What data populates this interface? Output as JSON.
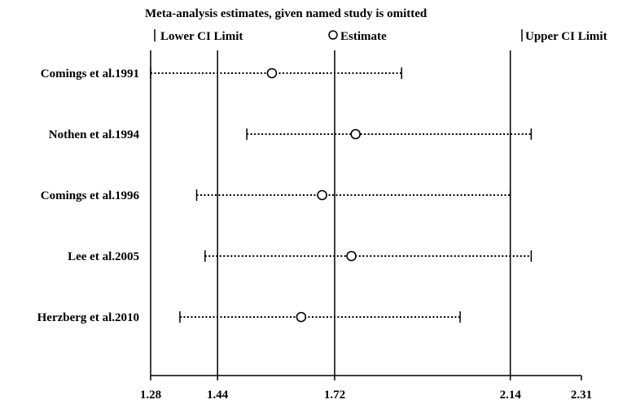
{
  "chart_data": {
    "type": "forest",
    "title": "Meta-analysis estimates, given named study is omitted",
    "legend": {
      "lower": "Lower CI Limit",
      "estimate": "Estimate",
      "upper": "Upper CI Limit"
    },
    "x_ticks": [
      1.28,
      1.44,
      1.72,
      2.14,
      2.31
    ],
    "x_tick_labels": [
      "1.28",
      "1.44",
      "1.72",
      "2.14",
      "2.31"
    ],
    "xlim": [
      1.28,
      2.31
    ],
    "reference_lines": [
      1.44,
      1.72,
      2.14
    ],
    "studies": [
      {
        "label": "Comings et al.1991",
        "lower": 1.28,
        "estimate": 1.57,
        "upper": 1.88
      },
      {
        "label": "Nothen et al.1994",
        "lower": 1.51,
        "estimate": 1.77,
        "upper": 2.19
      },
      {
        "label": "Comings et al.1996",
        "lower": 1.39,
        "estimate": 1.69,
        "upper": 2.14
      },
      {
        "label": "Lee et al.2005",
        "lower": 1.41,
        "estimate": 1.76,
        "upper": 2.19
      },
      {
        "label": "Herzberg et al.2010",
        "lower": 1.35,
        "estimate": 1.64,
        "upper": 2.02
      }
    ]
  }
}
